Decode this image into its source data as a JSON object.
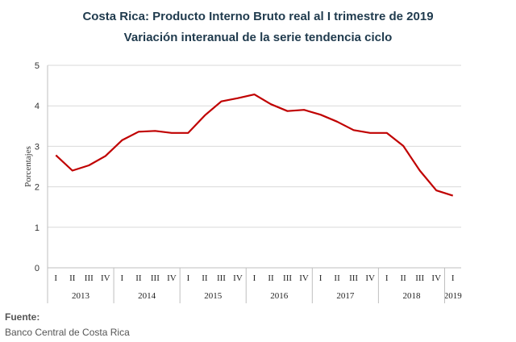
{
  "chart_data": {
    "type": "line",
    "title": "Costa Rica: Producto Interno Bruto real al I trimestre de 2019",
    "subtitle": "Variación interanual de la serie tendencia ciclo",
    "ylabel": "Porcentajes",
    "ylim": [
      0,
      5
    ],
    "yticks": [
      "0",
      "1",
      "2",
      "3",
      "4",
      "5"
    ],
    "grid": true,
    "x": [
      "I",
      "II",
      "III",
      "IV",
      "I",
      "II",
      "III",
      "IV",
      "I",
      "II",
      "III",
      "IV",
      "I",
      "II",
      "III",
      "IV",
      "I",
      "II",
      "III",
      "IV",
      "I",
      "II",
      "III",
      "IV",
      "I"
    ],
    "years": [
      {
        "label": "2013",
        "quarters": 4
      },
      {
        "label": "2014",
        "quarters": 4
      },
      {
        "label": "2015",
        "quarters": 4
      },
      {
        "label": "2016",
        "quarters": 4
      },
      {
        "label": "2017",
        "quarters": 4
      },
      {
        "label": "2018",
        "quarters": 4
      },
      {
        "label": "2019",
        "quarters": 1
      }
    ],
    "series": [
      {
        "color": "#c00000",
        "values": [
          2.78,
          2.4,
          2.53,
          2.76,
          3.15,
          3.36,
          3.38,
          3.33,
          3.33,
          3.76,
          4.11,
          4.19,
          4.28,
          4.04,
          3.87,
          3.9,
          3.78,
          3.61,
          3.4,
          3.33,
          3.33,
          3.01,
          2.4,
          1.91,
          1.78
        ]
      }
    ]
  },
  "source": {
    "heading": "Fuente:",
    "text": "Banco Central de Costa Rica"
  }
}
